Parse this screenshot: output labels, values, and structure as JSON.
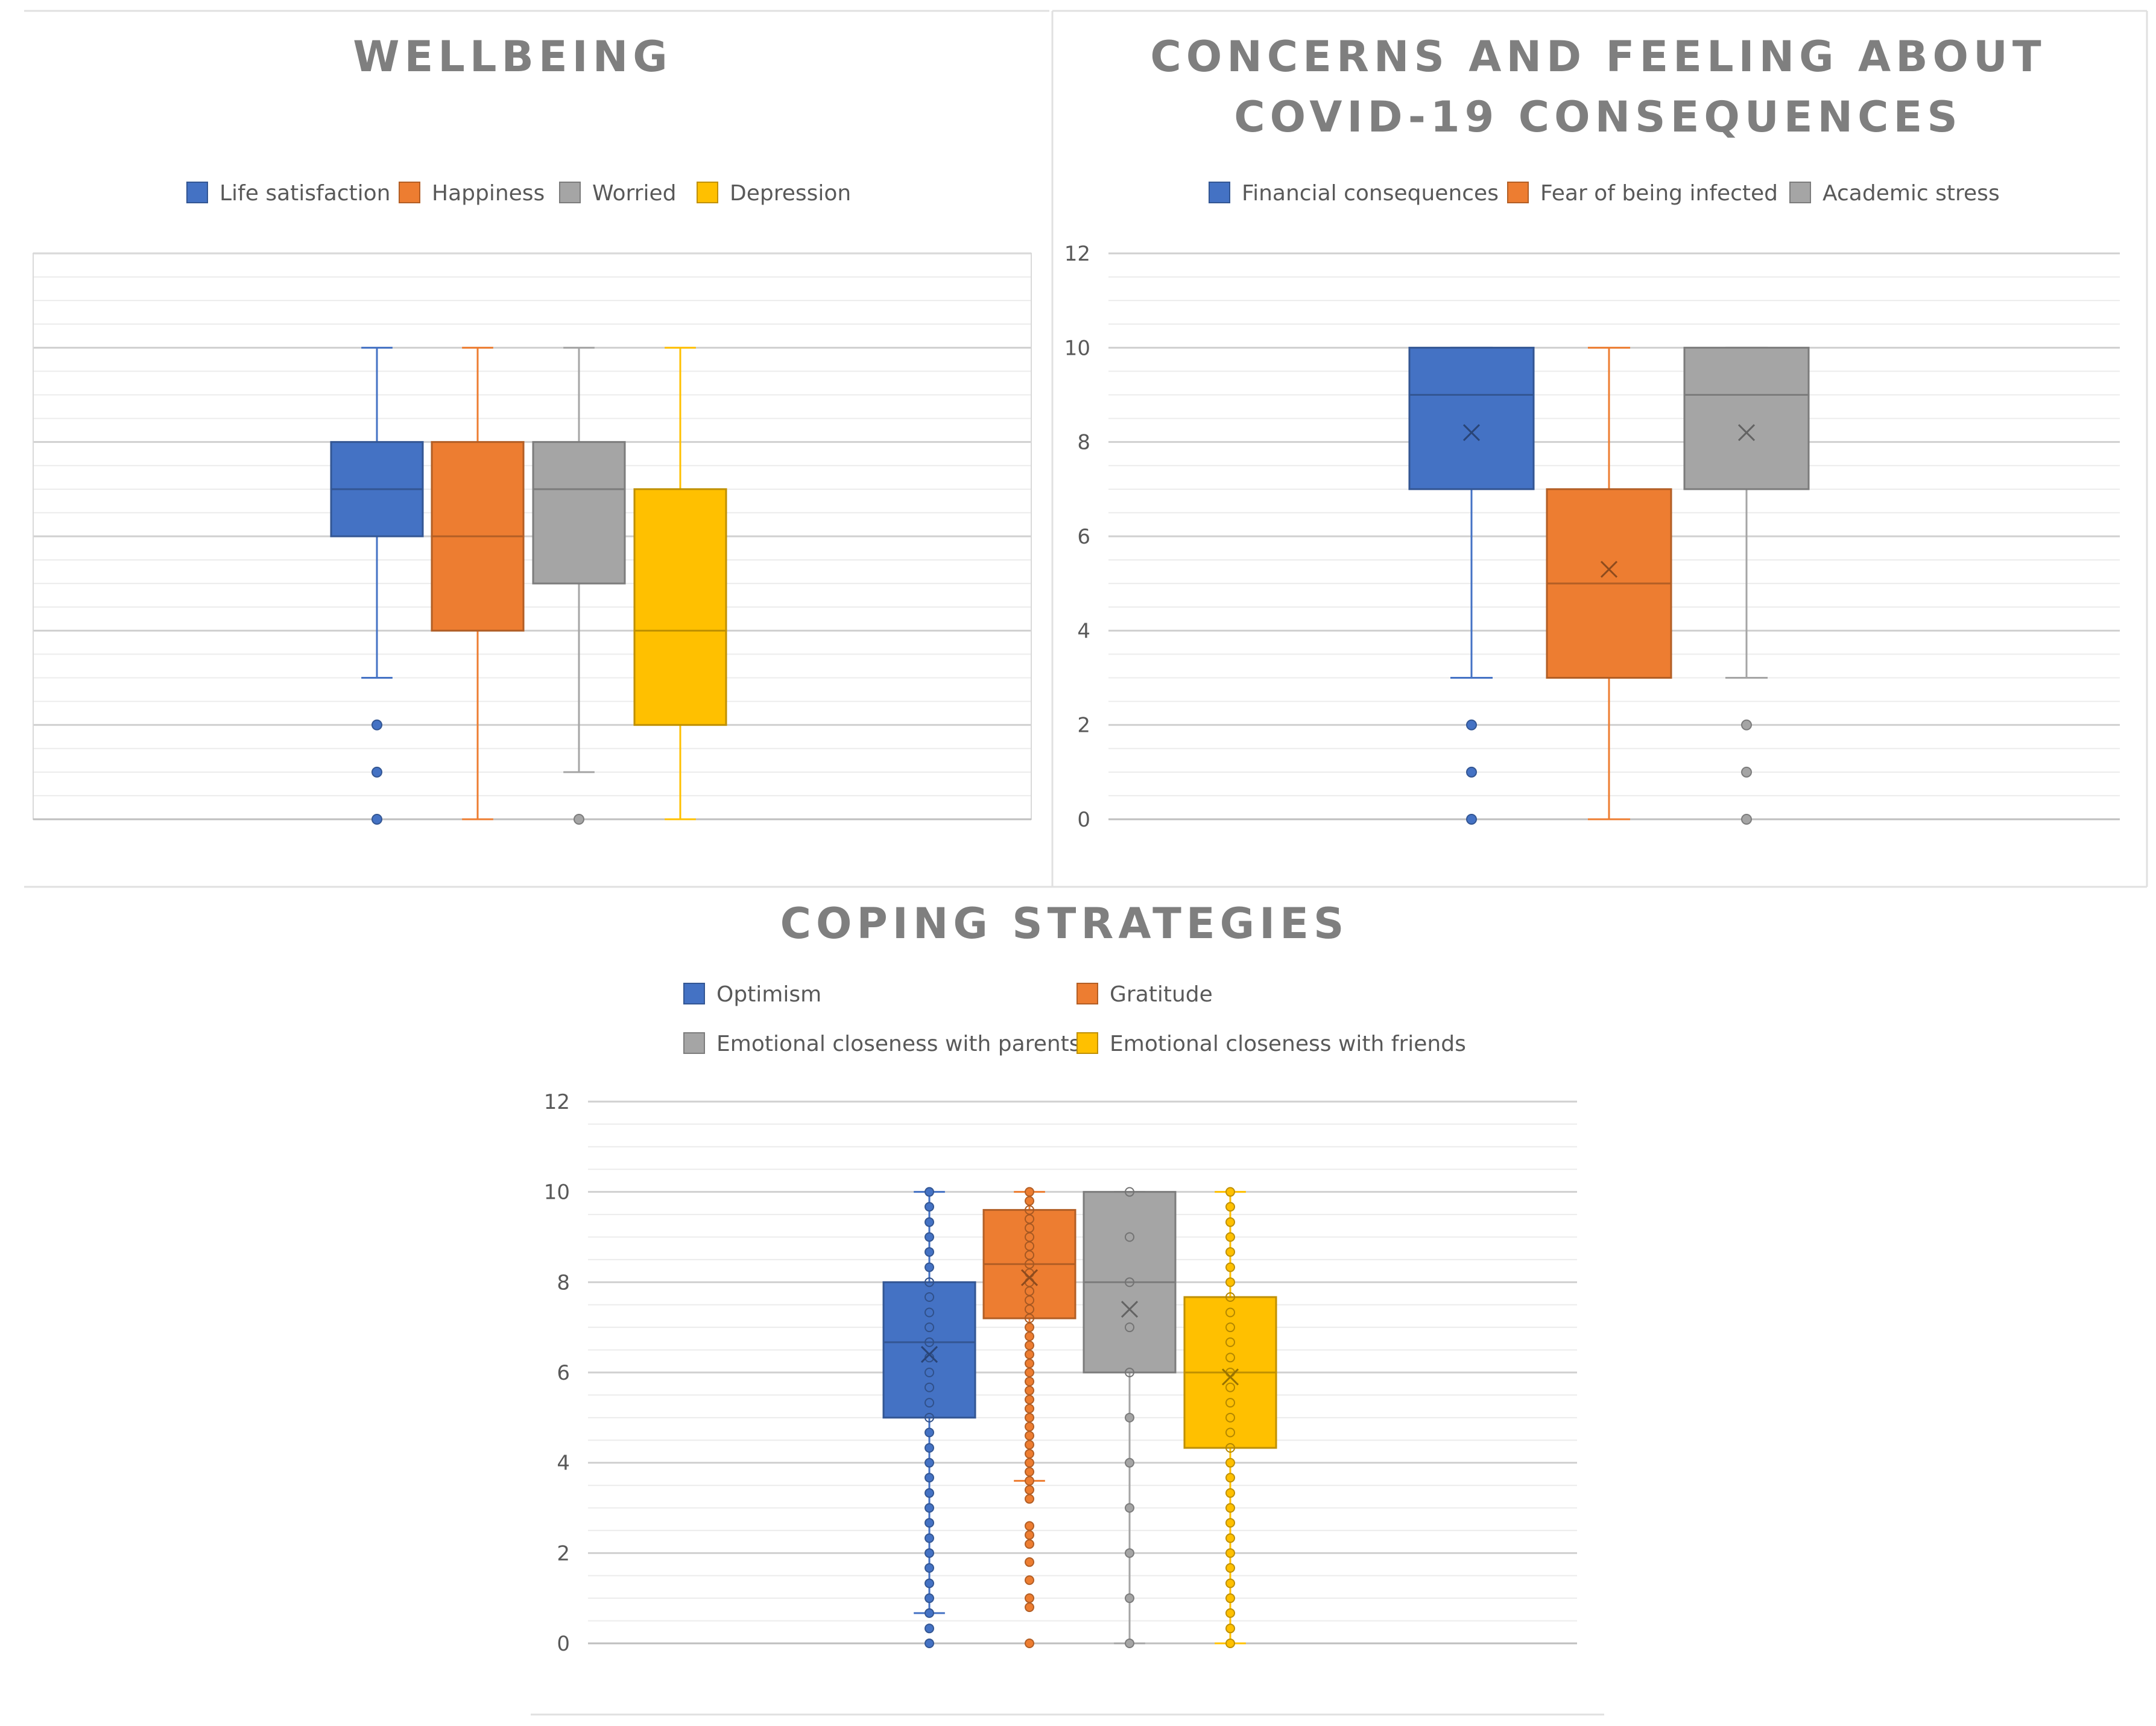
{
  "chart_data": [
    {
      "type": "box",
      "title": "WELLBEING",
      "xlabel": "",
      "ylabel": "",
      "ylim": [
        0,
        12
      ],
      "y_ticks_visible": false,
      "grid": true,
      "legend_placement": "top",
      "series": [
        {
          "name": "Life satisfaction",
          "color": "#4472c4",
          "min": 3,
          "q1": 6,
          "median": 7,
          "q3": 8,
          "max": 10,
          "outliers": [
            2,
            1,
            0
          ]
        },
        {
          "name": "Happiness",
          "color": "#ed7d31",
          "min": 0,
          "q1": 4,
          "median": 6,
          "q3": 8,
          "max": 10,
          "outliers": []
        },
        {
          "name": "Worried",
          "color": "#a5a5a5",
          "min": 1,
          "q1": 5,
          "median": 7,
          "q3": 8,
          "max": 10,
          "outliers": [
            0
          ]
        },
        {
          "name": "Depression",
          "color": "#ffc000",
          "min": 0,
          "q1": 2,
          "median": 4,
          "q3": 7,
          "max": 10,
          "outliers": []
        }
      ]
    },
    {
      "type": "box",
      "title": "CONCERNS AND FEELING ABOUT COVID-19 CONSEQUENCES",
      "title_lines": [
        "CONCERNS AND FEELING ABOUT",
        "COVID-19 CONSEQUENCES"
      ],
      "xlabel": "",
      "ylabel": "",
      "ylim": [
        0,
        12
      ],
      "y_ticks": [
        "0",
        "2",
        "4",
        "6",
        "8",
        "10",
        "12"
      ],
      "y_ticks_visible": true,
      "grid": true,
      "legend_placement": "top",
      "series": [
        {
          "name": "Financial consequences",
          "color": "#4472c4",
          "min": 3,
          "q1": 7,
          "median": 9,
          "q3": 10,
          "max": 10,
          "mean": 8.2,
          "outliers": [
            2,
            1,
            0
          ]
        },
        {
          "name": "Fear of being infected",
          "color": "#ed7d31",
          "min": 0,
          "q1": 3,
          "median": 5,
          "q3": 7,
          "max": 10,
          "mean": 5.3,
          "outliers": []
        },
        {
          "name": "Academic stress",
          "color": "#a5a5a5",
          "min": 3,
          "q1": 7,
          "median": 9,
          "q3": 10,
          "max": 10,
          "mean": 8.2,
          "outliers": [
            2,
            1,
            0
          ]
        }
      ]
    },
    {
      "type": "box",
      "title": "COPING STRATEGIES",
      "xlabel": "",
      "ylabel": "",
      "ylim": [
        0,
        12
      ],
      "y_ticks": [
        "0",
        "2",
        "4",
        "6",
        "8",
        "10",
        "12"
      ],
      "y_ticks_visible": true,
      "grid": true,
      "legend_placement": "top",
      "series": [
        {
          "name": "Optimism",
          "color": "#4472c4",
          "min": 0.67,
          "q1": 5,
          "median": 6.67,
          "q3": 8,
          "max": 10,
          "mean": 6.4,
          "outliers": [
            0,
            0.33
          ],
          "points": [
            0,
            0.33,
            0.67,
            1,
            1.33,
            1.67,
            2,
            2.33,
            2.67,
            3,
            3.33,
            3.67,
            4,
            4.33,
            4.67,
            5,
            5.33,
            5.67,
            6,
            6.33,
            6.67,
            7,
            7.33,
            7.67,
            8,
            8.33,
            8.67,
            9,
            9.33,
            9.67,
            10
          ]
        },
        {
          "name": "Gratitude",
          "color": "#ed7d31",
          "min": 3.6,
          "q1": 7.2,
          "median": 8.4,
          "q3": 9.6,
          "max": 10,
          "mean": 8.1,
          "outliers": [
            3.4,
            3.2,
            2.6,
            2.4,
            2.2,
            1.8,
            1.4,
            1,
            0.8,
            0
          ],
          "points": [
            0,
            0.8,
            1,
            1.4,
            1.8,
            2.2,
            2.4,
            2.6,
            3.2,
            3.4,
            3.6,
            3.8,
            4,
            4.2,
            4.4,
            4.6,
            4.8,
            5,
            5.2,
            5.4,
            5.6,
            5.8,
            6,
            6.2,
            6.4,
            6.6,
            6.8,
            7,
            7.2,
            7.4,
            7.6,
            7.8,
            8,
            8.2,
            8.4,
            8.6,
            8.8,
            9,
            9.2,
            9.4,
            9.6,
            9.8,
            10
          ]
        },
        {
          "name": "Emotional closeness with parents",
          "color": "#a5a5a5",
          "min": 0,
          "q1": 6,
          "median": 8,
          "q3": 10,
          "max": 10,
          "mean": 7.4,
          "outliers": [],
          "points": [
            0,
            1,
            2,
            3,
            4,
            5,
            6,
            7,
            8,
            9,
            10
          ]
        },
        {
          "name": "Emotional closeness with friends",
          "color": "#ffc000",
          "min": 0,
          "q1": 4.33,
          "median": 6,
          "q3": 7.67,
          "max": 10,
          "mean": 5.9,
          "outliers": [],
          "points": [
            0,
            0.33,
            0.67,
            1,
            1.33,
            1.67,
            2,
            2.33,
            2.67,
            3,
            3.33,
            3.67,
            4,
            4.33,
            4.67,
            5,
            5.33,
            5.67,
            6,
            6.33,
            6.67,
            7,
            7.33,
            7.67,
            8,
            8.33,
            8.67,
            9,
            9.33,
            9.67,
            10
          ]
        }
      ]
    }
  ]
}
